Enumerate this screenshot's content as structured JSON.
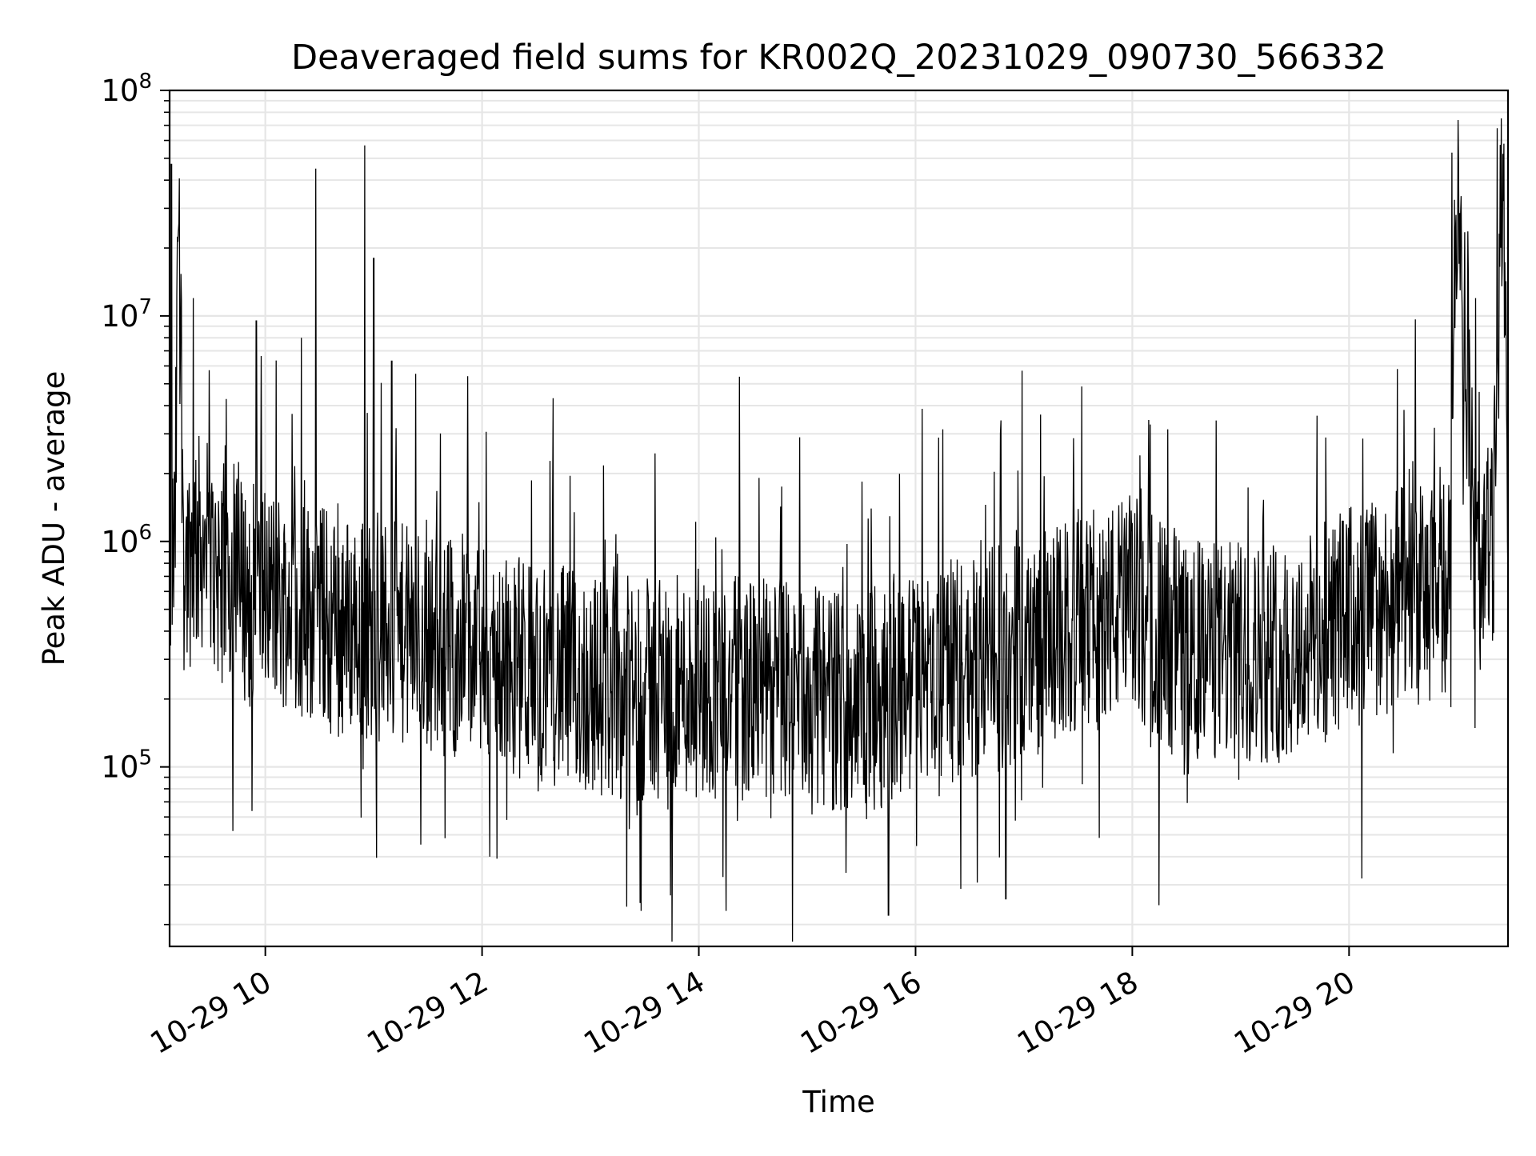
{
  "chart_data": {
    "type": "line",
    "title": "Deaveraged field sums for KR002Q_20231029_090730_566332",
    "xlabel": "Time",
    "ylabel": "Peak ADU - average",
    "yscale": "log",
    "ylim": [
      16000,
      100000000
    ],
    "xlim": [
      "2023-10-29 09:07",
      "2023-10-29 21:28"
    ],
    "grid": true,
    "x_ticks": [
      {
        "value": "2023-10-29 10:00",
        "label": "10-29 10"
      },
      {
        "value": "2023-10-29 12:00",
        "label": "10-29 12"
      },
      {
        "value": "2023-10-29 14:00",
        "label": "10-29 14"
      },
      {
        "value": "2023-10-29 16:00",
        "label": "10-29 16"
      },
      {
        "value": "2023-10-29 18:00",
        "label": "10-29 18"
      },
      {
        "value": "2023-10-29 20:00",
        "label": "10-29 20"
      }
    ],
    "y_ticks": [
      {
        "value": 100000,
        "base": "10",
        "exp": "5"
      },
      {
        "value": 1000000,
        "base": "10",
        "exp": "6"
      },
      {
        "value": 10000000,
        "base": "10",
        "exp": "7"
      },
      {
        "value": 100000000,
        "base": "10",
        "exp": "8"
      }
    ],
    "series": [
      {
        "color": "#000000",
        "x": [
          "2023-10-29 09:07",
          "2023-10-29 09:10",
          "2023-10-29 09:12",
          "2023-10-29 09:15",
          "2023-10-29 09:20",
          "2023-10-29 09:25",
          "2023-10-29 09:30",
          "2023-10-29 09:40",
          "2023-10-29 09:50",
          "2023-10-29 10:00",
          "2023-10-29 10:20",
          "2023-10-29 10:30",
          "2023-10-29 10:40",
          "2023-10-29 10:50",
          "2023-10-29 11:00",
          "2023-10-29 11:20",
          "2023-10-29 11:40",
          "2023-10-29 12:00",
          "2023-10-29 12:30",
          "2023-10-29 13:00",
          "2023-10-29 13:30",
          "2023-10-29 14:00",
          "2023-10-29 14:30",
          "2023-10-29 15:00",
          "2023-10-29 15:30",
          "2023-10-29 16:00",
          "2023-10-29 16:30",
          "2023-10-29 17:00",
          "2023-10-29 17:30",
          "2023-10-29 18:00",
          "2023-10-29 18:30",
          "2023-10-29 19:00",
          "2023-10-29 19:30",
          "2023-10-29 20:00",
          "2023-10-29 20:30",
          "2023-10-29 20:55",
          "2023-10-29 21:00",
          "2023-10-29 21:10",
          "2023-10-29 21:15",
          "2023-10-29 21:20",
          "2023-10-29 21:25",
          "2023-10-29 21:28"
        ],
        "y": [
          700000,
          900000,
          40000000,
          800000,
          900000,
          1000000,
          800000,
          700000,
          600000,
          600000,
          500000,
          500000,
          400000,
          450000,
          400000,
          380000,
          350000,
          300000,
          270000,
          230000,
          220000,
          230000,
          220000,
          210000,
          190000,
          240000,
          280000,
          330000,
          420000,
          520000,
          330000,
          320000,
          330000,
          470000,
          560000,
          600000,
          50000000,
          700000,
          900000,
          1000000,
          60000000,
          1000000
        ]
      }
    ],
    "spikes": [
      {
        "x": "2023-10-29 09:08",
        "y": 47000000
      },
      {
        "x": "2023-10-29 09:20",
        "y": 12000000
      },
      {
        "x": "2023-10-29 09:55",
        "y": 9500000
      },
      {
        "x": "2023-10-29 10:20",
        "y": 8000000
      },
      {
        "x": "2023-10-29 10:28",
        "y": 10000000
      },
      {
        "x": "2023-10-29 10:28",
        "y": 45000000
      },
      {
        "x": "2023-10-29 10:55",
        "y": 57000000
      },
      {
        "x": "2023-10-29 11:00",
        "y": 18000000
      },
      {
        "x": "2023-10-29 11:10",
        "y": 6300000
      },
      {
        "x": "2023-10-29 11:52",
        "y": 5400000
      },
      {
        "x": "2023-10-29 20:57",
        "y": 53000000
      },
      {
        "x": "2023-10-29 21:10",
        "y": 12000000
      },
      {
        "x": "2023-10-29 21:22",
        "y": 68000000
      }
    ],
    "dips": [
      {
        "x": "2023-10-29 09:42",
        "y": 52000
      },
      {
        "x": "2023-10-29 13:20",
        "y": 24000
      },
      {
        "x": "2023-10-29 13:28",
        "y": 23000
      },
      {
        "x": "2023-10-29 14:15",
        "y": 23000
      },
      {
        "x": "2023-10-29 15:45",
        "y": 22000
      },
      {
        "x": "2023-10-29 16:50",
        "y": 26000
      },
      {
        "x": "2023-10-29 20:07",
        "y": 32000
      }
    ]
  }
}
